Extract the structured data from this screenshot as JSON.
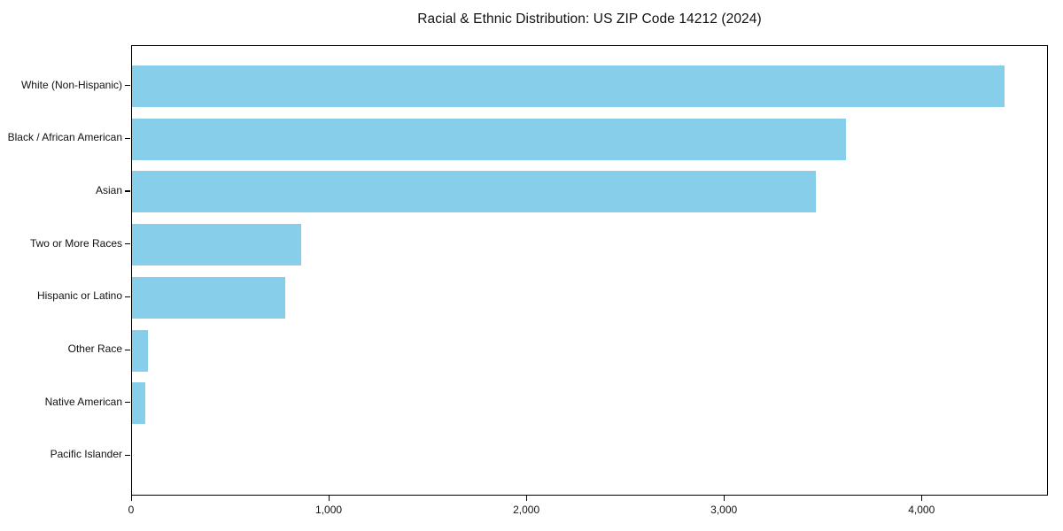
{
  "title": "Racial & Ethnic Distribution: US ZIP Code 14212 (2024)",
  "chart_data": {
    "type": "bar",
    "orientation": "horizontal",
    "title": "Racial & Ethnic Distribution: US ZIP Code 14212 (2024)",
    "xlabel": "",
    "ylabel": "",
    "categories": [
      "White (Non-Hispanic)",
      "Black / African American",
      "Asian",
      "Two or More Races",
      "Hispanic or Latino",
      "Other Race",
      "Native American",
      "Pacific Islander"
    ],
    "values": [
      4430,
      3625,
      3470,
      860,
      780,
      82,
      67,
      0
    ],
    "xlim": [
      0,
      4640
    ],
    "xticks": [
      0,
      1000,
      2000,
      3000,
      4000
    ],
    "xtick_labels": [
      "0",
      "1,000",
      "2,000",
      "3,000",
      "4,000"
    ],
    "bar_color": "#87CEEB",
    "grid": false,
    "legend": null
  },
  "colors": {
    "bar": "#87CEEB",
    "background": "#ffffff",
    "text": "#111111",
    "spine": "#000000"
  }
}
